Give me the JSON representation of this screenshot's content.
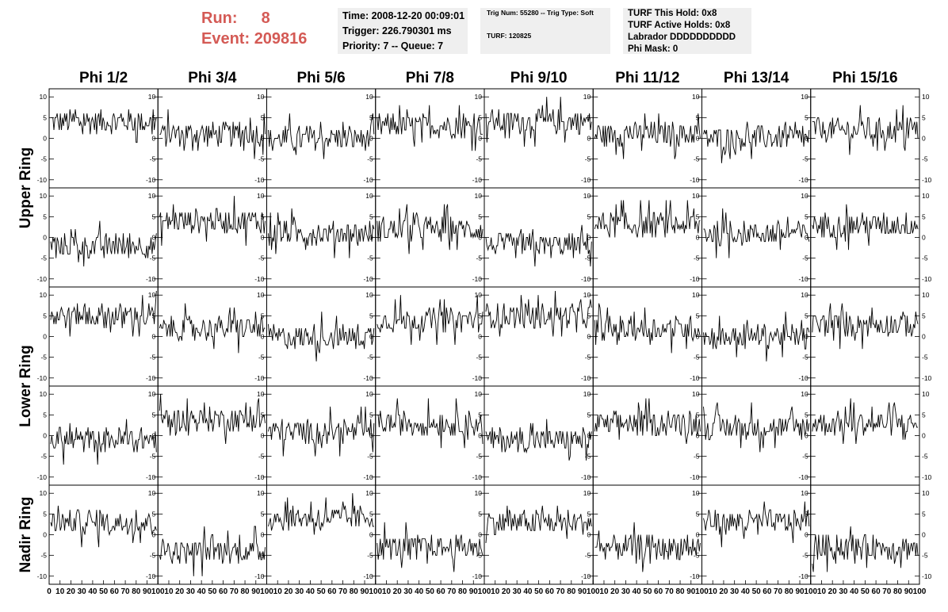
{
  "header": {
    "run_label": "Run:",
    "run_value": "8",
    "event_label": "Event:",
    "event_value": "209816"
  },
  "info_time": {
    "line1": "Time: 2008-12-20 00:09:01",
    "line2": "Trigger: 226.790301 ms",
    "line3": "Priority: 7 -- Queue: 7"
  },
  "info_trigger": {
    "line1": "Trig Num: 55280 -- Trig Type: Soft",
    "line2": "TURF: 120825"
  },
  "info_turf": {
    "line1": "TURF This Hold: 0x8",
    "line2": "TURF Active Holds: 0x8",
    "line3": "Labrador DDDDDDDDDD",
    "line4": "Phi Mask: 0"
  },
  "chart_data": {
    "type": "line",
    "columns": [
      "Phi 1/2",
      "Phi 3/4",
      "Phi 5/6",
      "Phi 7/8",
      "Phi 9/10",
      "Phi 11/12",
      "Phi 13/14",
      "Phi 15/16"
    ],
    "rows": [
      "Upper Ring",
      "Upper Ring",
      "Lower Ring",
      "Lower Ring",
      "Nadir Ring"
    ],
    "row_labels": [
      "Upper Ring",
      "Lower Ring",
      "Nadir Ring"
    ],
    "ylim": [
      -11,
      11
    ],
    "yticks": [
      -10,
      -5,
      0,
      5,
      10
    ],
    "xlim": [
      0,
      100
    ],
    "xticks": [
      0,
      10,
      20,
      30,
      40,
      50,
      60,
      70,
      80,
      90,
      100
    ],
    "samples_per_trace": 100,
    "trace_baselines": [
      [
        4,
        1,
        0,
        3,
        4,
        1,
        0,
        2
      ],
      [
        -2,
        4,
        1,
        2,
        -2,
        3,
        1,
        3
      ],
      [
        5,
        2,
        0,
        4,
        5,
        2,
        0,
        3
      ],
      [
        -1,
        4,
        1,
        3,
        -1,
        3,
        2,
        3
      ],
      [
        3,
        -4,
        4,
        -3,
        3,
        -3,
        3,
        -3
      ]
    ],
    "trace_amplitude": 4,
    "grid": false,
    "legend": "none"
  }
}
